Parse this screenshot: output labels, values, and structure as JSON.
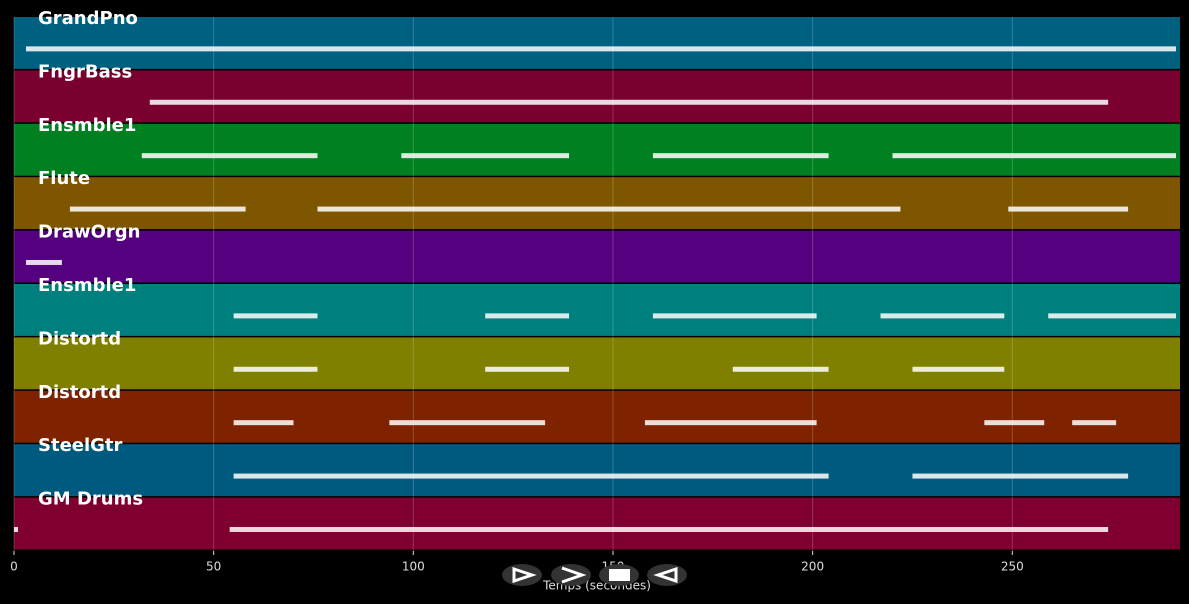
{
  "chart_data": {
    "type": "piano-roll",
    "x_label": "Temps (secondes)",
    "xlim": [
      0,
      291.5
    ],
    "xticks": [
      0,
      50,
      100,
      150,
      200,
      250
    ],
    "grid": true,
    "series": [
      {
        "name": "GrandPno",
        "color": "#00607f",
        "starts": [
          3
        ],
        "ends": [
          291
        ]
      },
      {
        "name": "FngrBass",
        "color": "#7a0030",
        "starts": [
          34
        ],
        "ends": [
          274
        ]
      },
      {
        "name": "Ensmble1",
        "color": "#008020",
        "starts": [
          32,
          97,
          160,
          220
        ],
        "ends": [
          76,
          139,
          204,
          291
        ]
      },
      {
        "name": "Flute",
        "color": "#7f5600",
        "starts": [
          14,
          76,
          249
        ],
        "ends": [
          58,
          222,
          279
        ]
      },
      {
        "name": "DrawOrgn",
        "color": "#55007f",
        "starts": [
          3
        ],
        "ends": [
          12
        ]
      },
      {
        "name": "Ensmble1",
        "color": "#007f7f",
        "starts": [
          55,
          118,
          160,
          217,
          259
        ],
        "ends": [
          76,
          139,
          201,
          248,
          291
        ]
      },
      {
        "name": "Distortd",
        "color": "#7f7f00",
        "starts": [
          55,
          118,
          180,
          225
        ],
        "ends": [
          76,
          139,
          204,
          248
        ]
      },
      {
        "name": "Distortd",
        "color": "#7f2200",
        "starts": [
          55,
          94,
          158,
          243,
          265
        ],
        "ends": [
          70,
          133,
          201,
          258,
          276
        ]
      },
      {
        "name": "SteelGtr",
        "color": "#005a7f",
        "starts": [
          55,
          225
        ],
        "ends": [
          204,
          279
        ]
      },
      {
        "name": "GM Drums",
        "color": "#7f0030",
        "starts": [
          0,
          54
        ],
        "ends": [
          1,
          274
        ]
      }
    ]
  }
}
